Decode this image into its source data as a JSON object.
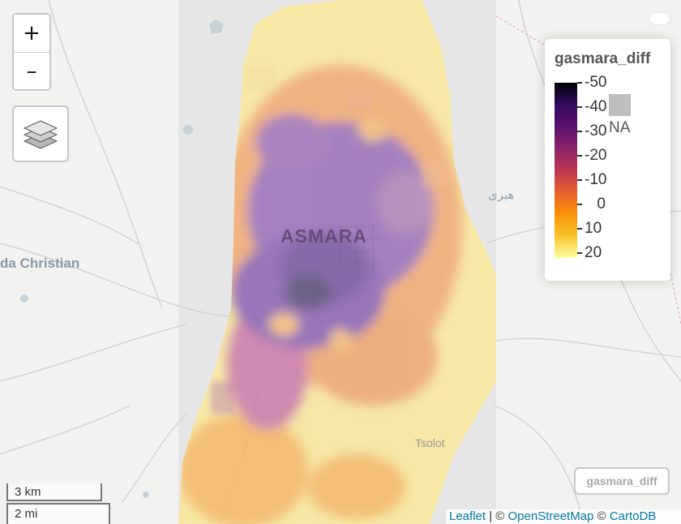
{
  "map": {
    "labels": {
      "city": "ASMARA",
      "town_west": "da Christian",
      "town_south": "Tsolot",
      "arabic_label": "هبرى"
    }
  },
  "controls": {
    "zoom_in": "+",
    "zoom_out": "–",
    "layers_icon": "layers-icon"
  },
  "legend": {
    "title": "gasmara_diff",
    "ticks": [
      "-50",
      "-40",
      "-30",
      "-20",
      "-10",
      "0",
      "10",
      "20"
    ],
    "na_label": "NA",
    "palette": [
      "#000004",
      "#320a5e",
      "#57106e",
      "#8a226a",
      "#bc3754",
      "#e55c30",
      "#f98e09",
      "#fac228",
      "#fcffa4"
    ],
    "na_color": "#bebebe"
  },
  "layer_badge": "gasmara_diff",
  "scale": {
    "km": "3 km",
    "mi": "2 mi"
  },
  "attribution": {
    "leaflet": "Leaflet",
    "sep1": " | © ",
    "osm": "OpenStreetMap",
    "sep2": " © ",
    "carto": "CartoDB"
  }
}
